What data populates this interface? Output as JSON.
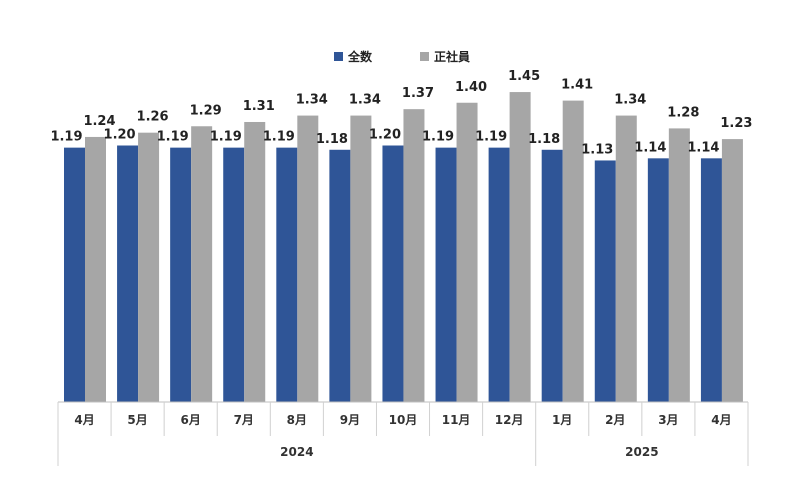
{
  "chart_data": {
    "type": "bar",
    "categories": [
      "4月",
      "5月",
      "6月",
      "7月",
      "8月",
      "9月",
      "10月",
      "11月",
      "12月",
      "1月",
      "2月",
      "3月",
      "4月"
    ],
    "groups": [
      {
        "label": "2024",
        "count": 9
      },
      {
        "label": "2025",
        "count": 4
      }
    ],
    "series": [
      {
        "name": "全数",
        "color": "#2f5597",
        "values": [
          1.19,
          1.2,
          1.19,
          1.19,
          1.19,
          1.18,
          1.2,
          1.19,
          1.19,
          1.18,
          1.13,
          1.14,
          1.14
        ]
      },
      {
        "name": "正社員",
        "color": "#a6a6a6",
        "values": [
          1.24,
          1.26,
          1.29,
          1.31,
          1.34,
          1.34,
          1.37,
          1.4,
          1.45,
          1.41,
          1.34,
          1.28,
          1.23
        ]
      }
    ],
    "ylim": [
      0,
      1.6
    ],
    "legend": "top-center",
    "grid": false
  }
}
